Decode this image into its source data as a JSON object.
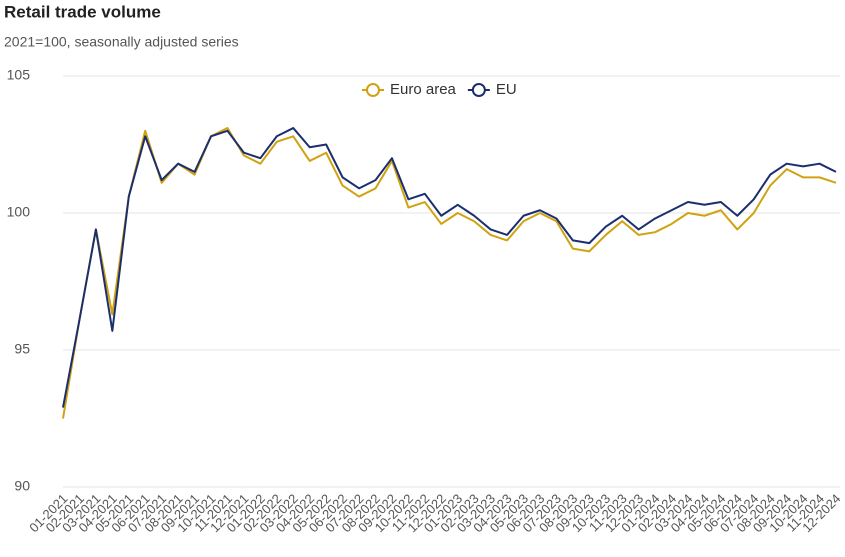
{
  "chart_data": {
    "type": "line",
    "title": "Retail trade volume",
    "subtitle": "2021=100, seasonally adjusted series",
    "categories": [
      "01-2021",
      "02-2021",
      "03-2021",
      "04-2021",
      "05-2021",
      "06-2021",
      "07-2021",
      "08-2021",
      "09-2021",
      "10-2021",
      "11-2021",
      "12-2021",
      "01-2022",
      "02-2022",
      "03-2022",
      "04-2022",
      "05-2022",
      "06-2022",
      "07-2022",
      "08-2022",
      "09-2022",
      "10-2022",
      "11-2022",
      "12-2022",
      "01-2023",
      "02-2023",
      "03-2023",
      "04-2023",
      "05-2023",
      "06-2023",
      "07-2023",
      "08-2023",
      "09-2023",
      "10-2023",
      "11-2023",
      "12-2023",
      "01-2024",
      "02-2024",
      "03-2024",
      "04-2024",
      "05-2024",
      "06-2024",
      "07-2024",
      "08-2024",
      "09-2024",
      "10-2024",
      "11-2024",
      "12-2024"
    ],
    "series": [
      {
        "name": "Euro area",
        "color": "#d1a20f",
        "values": [
          92.5,
          96.1,
          99.4,
          96.3,
          100.6,
          103.0,
          101.1,
          101.8,
          101.4,
          102.8,
          103.1,
          102.1,
          101.8,
          102.6,
          102.8,
          101.9,
          102.2,
          101.0,
          100.6,
          100.9,
          101.9,
          100.2,
          100.4,
          99.6,
          100.0,
          99.7,
          99.2,
          99.0,
          99.7,
          100.0,
          99.7,
          98.7,
          98.6,
          99.2,
          99.7,
          99.2,
          99.3,
          99.6,
          100.0,
          99.9,
          100.1,
          99.4,
          100.0,
          101.0,
          101.6,
          101.3,
          101.3,
          101.1
        ]
      },
      {
        "name": "EU",
        "color": "#1b2f6e",
        "values": [
          92.9,
          96.1,
          99.4,
          95.7,
          100.6,
          102.8,
          101.2,
          101.8,
          101.5,
          102.8,
          103.0,
          102.2,
          102.0,
          102.8,
          103.1,
          102.4,
          102.5,
          101.3,
          100.9,
          101.2,
          102.0,
          100.5,
          100.7,
          99.9,
          100.3,
          99.9,
          99.4,
          99.2,
          99.9,
          100.1,
          99.8,
          99.0,
          98.9,
          99.5,
          99.9,
          99.4,
          99.8,
          100.1,
          100.4,
          100.3,
          100.4,
          99.9,
          100.5,
          101.4,
          101.8,
          101.7,
          101.8,
          101.5
        ]
      }
    ],
    "ylim": [
      90,
      105
    ],
    "yticks": [
      90,
      95,
      100,
      105
    ],
    "grid": true,
    "legend": "top"
  }
}
